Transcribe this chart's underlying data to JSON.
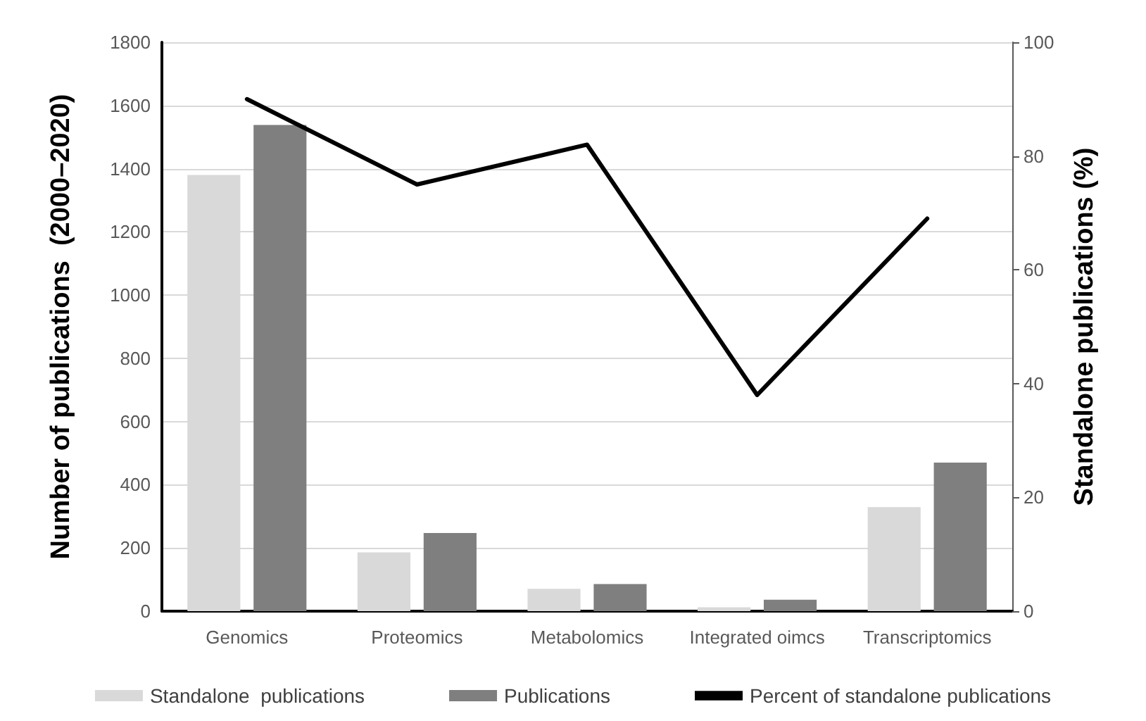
{
  "chart_data": {
    "type": "bar",
    "ylabel": "Number of publications  (2000–2020)",
    "y2label": "Standalone publications (%)",
    "categories": [
      "Genomics",
      "Proteomics",
      "Metabolomics",
      "Integrated oimcs",
      "Transcriptomics"
    ],
    "series": [
      {
        "name": "Standalone  publications",
        "color": "#d9d9d9",
        "values": [
          1380,
          186,
          71,
          12,
          329
        ]
      },
      {
        "name": "Publications",
        "color": "#7f7f7f",
        "values": [
          1538,
          247,
          86,
          36,
          470
        ]
      },
      {
        "name": "Percent of standalone publications",
        "type": "line",
        "axis": "y2",
        "color": "#000000",
        "values": [
          90,
          75,
          82,
          38,
          69
        ]
      }
    ],
    "ylim": [
      0,
      1800
    ],
    "yticks": [
      0,
      200,
      400,
      600,
      800,
      1000,
      1200,
      1400,
      1600,
      1800
    ],
    "y2lim": [
      0,
      100
    ],
    "y2ticks": [
      0,
      20,
      40,
      60,
      80,
      100
    ],
    "grid": "y",
    "legend": "bottom",
    "marker": "none",
    "line_style": "solid"
  }
}
